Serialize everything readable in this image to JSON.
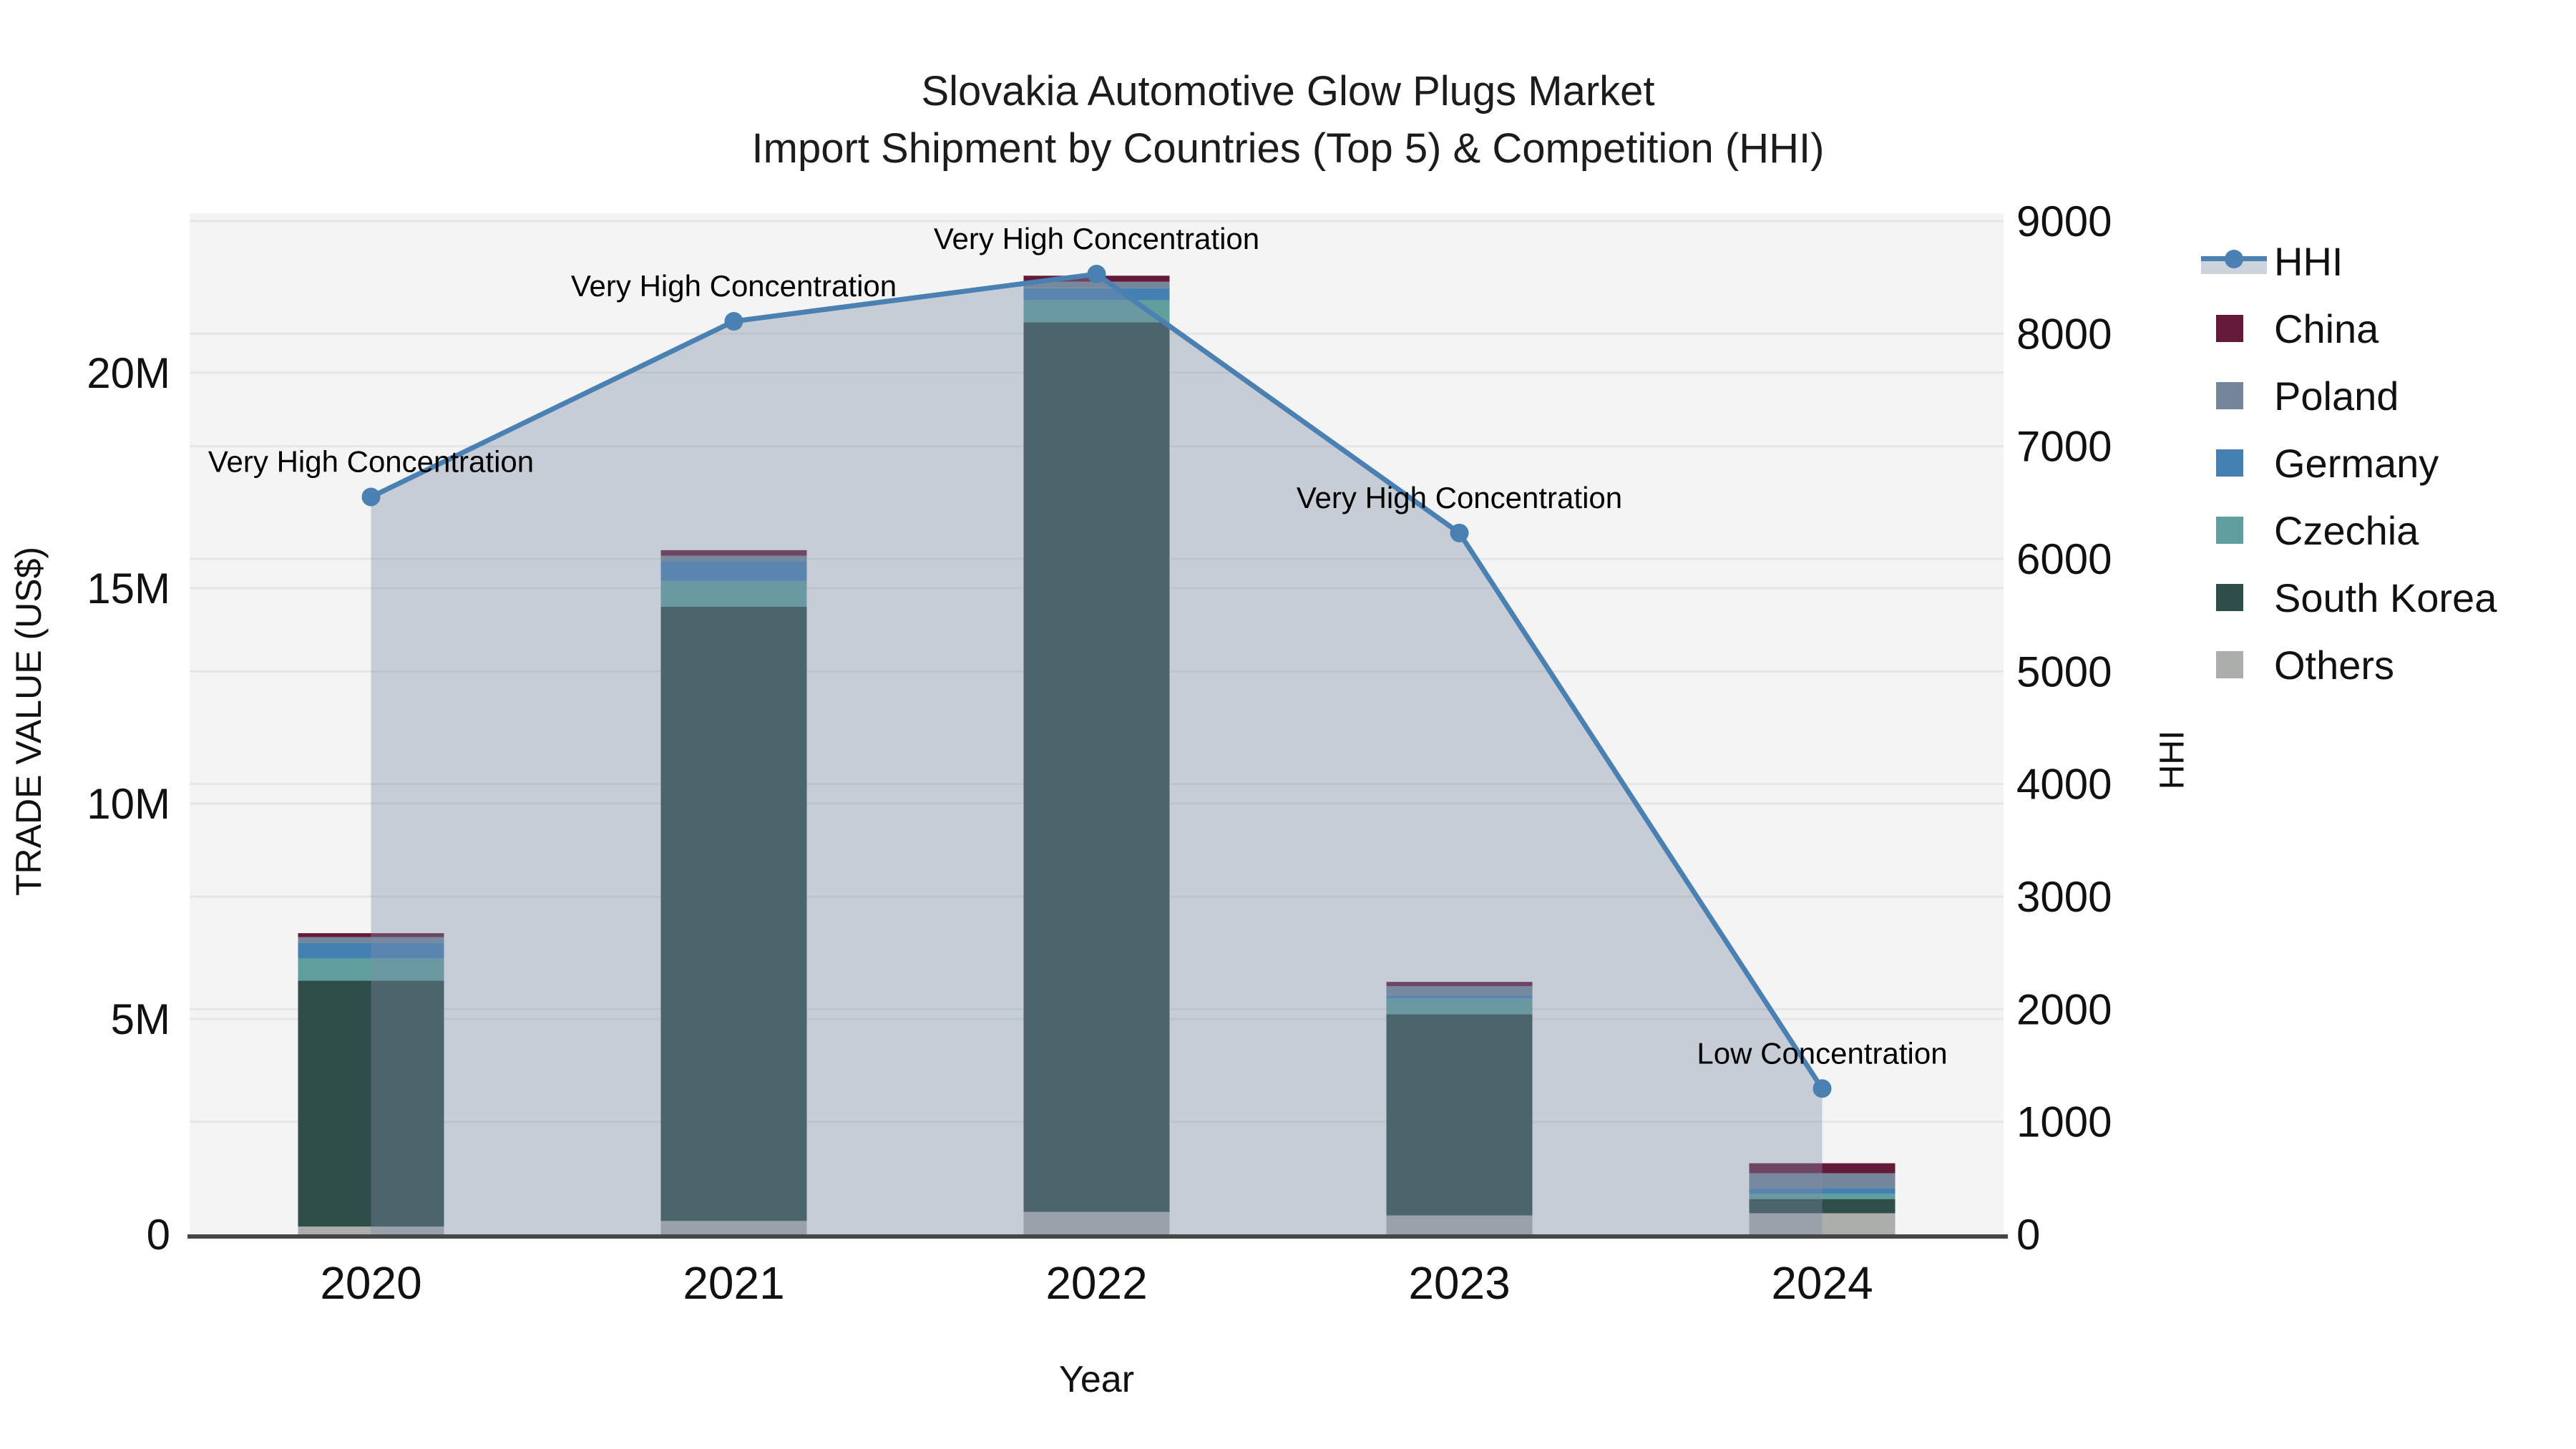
{
  "chart_data": {
    "type": "combo-stacked-bar-line",
    "title": "Slovakia Automotive Glow Plugs Market",
    "subtitle": "Import Shipment by Countries (Top 5) & Competition (HHI)",
    "xlabel": "Year",
    "ylabel_left": "TRADE VALUE (US$)",
    "ylabel_right": "HHI",
    "categories": [
      "2020",
      "2021",
      "2022",
      "2023",
      "2024"
    ],
    "bar_value_unit": "million US$",
    "series": [
      {
        "name": "China",
        "color": "#661a3a",
        "values_musd": [
          0.09,
          0.13,
          0.14,
          0.1,
          0.23
        ]
      },
      {
        "name": "Poland",
        "color": "#74869a",
        "values_musd": [
          0.13,
          0.13,
          0.15,
          0.21,
          0.35
        ]
      },
      {
        "name": "Germany",
        "color": "#4480b2",
        "values_musd": [
          0.37,
          0.45,
          0.28,
          0.08,
          0.13
        ]
      },
      {
        "name": "Czechia",
        "color": "#5fa09e",
        "values_musd": [
          0.51,
          0.6,
          0.51,
          0.36,
          0.12
        ]
      },
      {
        "name": "South Korea",
        "color": "#2f4d49",
        "values_musd": [
          5.71,
          14.26,
          20.65,
          4.67,
          0.33
        ]
      },
      {
        "name": "Others",
        "color": "#abaeab",
        "values_musd": [
          0.18,
          0.31,
          0.52,
          0.44,
          0.49
        ]
      }
    ],
    "stack_order_bottom_to_top": [
      "Others",
      "South Korea",
      "Czechia",
      "Germany",
      "Poland",
      "China"
    ],
    "bar_totals_musd": [
      6.99,
      15.88,
      22.25,
      5.86,
      1.65
    ],
    "hhi_line": {
      "name": "HHI",
      "values": [
        6550,
        8110,
        8530,
        6230,
        1295
      ],
      "line_color": "#4a80b2",
      "fill_color": "rgba(124,143,168,0.38)"
    },
    "annotations": [
      {
        "x": "2020",
        "text": "Very High Concentration"
      },
      {
        "x": "2021",
        "text": "Very High Concentration"
      },
      {
        "x": "2022",
        "text": "Very High Concentration"
      },
      {
        "x": "2023",
        "text": "Very High Concentration"
      },
      {
        "x": "2024",
        "text": "Low Concentration"
      }
    ],
    "left_axis": {
      "tick_labels": [
        "0",
        "5M",
        "10M",
        "15M",
        "20M"
      ],
      "tick_values_musd": [
        0,
        5,
        10,
        15,
        20
      ],
      "range_musd": [
        0,
        23.7
      ],
      "grid": true
    },
    "right_axis": {
      "tick_labels": [
        "0",
        "1000",
        "2000",
        "3000",
        "4000",
        "5000",
        "6000",
        "7000",
        "8000",
        "9000"
      ],
      "tick_values": [
        0,
        1000,
        2000,
        3000,
        4000,
        5000,
        6000,
        7000,
        8000,
        9000
      ],
      "range": [
        0,
        9070
      ],
      "grid": true
    },
    "legend": {
      "position": "top-right-outside",
      "items": [
        {
          "label": "HHI",
          "swatch": "line-marker-band"
        },
        {
          "label": "China",
          "swatch": "square"
        },
        {
          "label": "Poland",
          "swatch": "square"
        },
        {
          "label": "Germany",
          "swatch": "square"
        },
        {
          "label": "Czechia",
          "swatch": "square"
        },
        {
          "label": "South Korea",
          "swatch": "square"
        },
        {
          "label": "Others",
          "swatch": "square"
        }
      ]
    },
    "colors": {
      "plot_background": "#f4f4f4",
      "grid_line": "#e5e6e6",
      "axis_line": "#474747",
      "text": "#111111"
    }
  }
}
